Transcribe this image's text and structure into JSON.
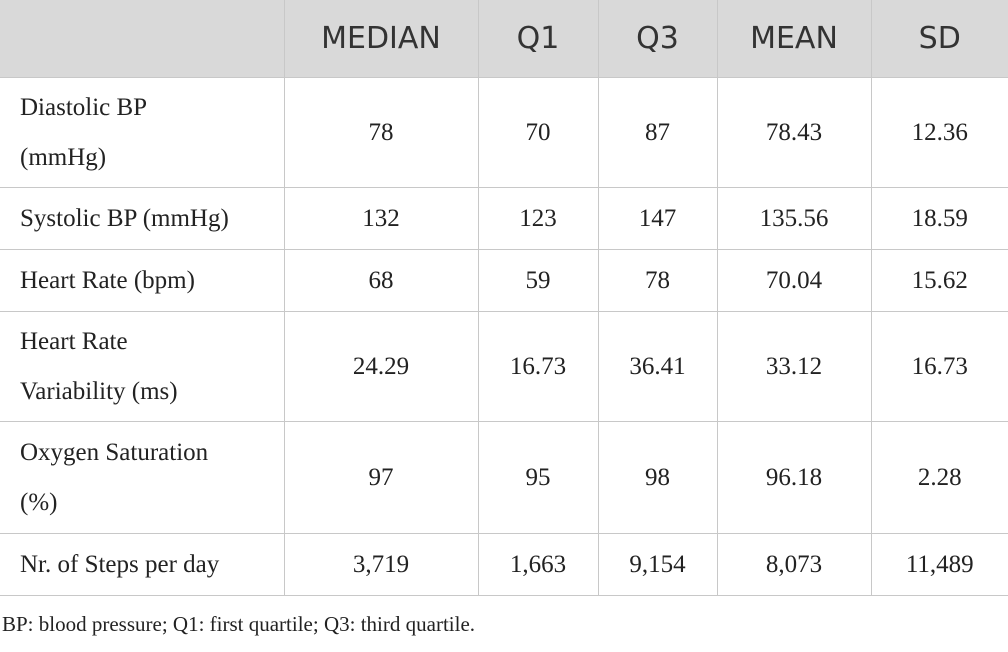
{
  "table": {
    "header": [
      "",
      "MEDIAN",
      "Q1",
      "Q3",
      "MEAN",
      "SD"
    ],
    "rows": [
      [
        "Diastolic BP (mmHg)",
        "78",
        "70",
        "87",
        "78.43",
        "12.36"
      ],
      [
        "Systolic BP (mmHg)",
        "132",
        "123",
        "147",
        "135.56",
        "18.59"
      ],
      [
        "Heart Rate (bpm)",
        "68",
        "59",
        "78",
        "70.04",
        "15.62"
      ],
      [
        "Heart Rate Variability (ms)",
        "24.29",
        "16.73",
        "36.41",
        "33.12",
        "16.73"
      ],
      [
        "Oxygen Saturation (%)",
        "97",
        "95",
        "98",
        "96.18",
        "2.28"
      ],
      [
        "Nr. of Steps per day",
        "3,719",
        "1,663",
        "9,154",
        "8,073",
        "11,489"
      ]
    ]
  },
  "footnote": "BP: blood pressure; Q1: first quartile; Q3: third quartile."
}
